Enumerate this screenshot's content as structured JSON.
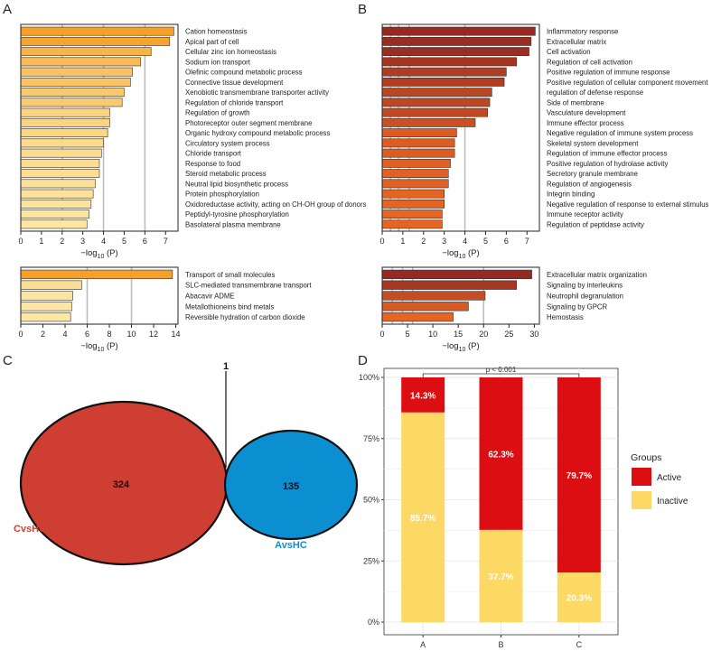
{
  "colors": {
    "grid": "#bdbdbd",
    "red": "#cc1f1f",
    "venn_red": "#cf3e32",
    "venn_blue": "#0b8fd1",
    "active": "#dd0e12",
    "inactive": "#fdd865",
    "bar_stroke": "#333333"
  },
  "panel_labels": {
    "a": "A",
    "b": "B",
    "c": "C",
    "d": "D"
  },
  "chart_data": [
    {
      "id": "A_top",
      "type": "bar",
      "orientation": "horizontal",
      "xlabel_pre": "−log",
      "xlabel_sub": "10",
      "xlabel_post": " (P)",
      "xlim": [
        0,
        7.6
      ],
      "ticks": [
        0,
        1,
        2,
        3,
        4,
        5,
        6,
        7
      ],
      "grid": [
        2,
        4,
        6
      ],
      "palette": "yellow-orange",
      "categories": [
        "Cation homeostasis",
        "Apical part of cell",
        "Cellular zinc ion homeostasis",
        "Sodium ion transport",
        "Olefinic compound metabolic process",
        "Connective tissue development",
        "Xenobiotic transmembrane transporter activity",
        "Regulation of chloride transport",
        "Regulation of growth",
        "Photoreceptor outer segment membrane",
        "Organic hydroxy compound metabolic process",
        "Circulatory system process",
        "Chloride transport",
        "Response to food",
        "Steroid metabolic process",
        "Neutral lipid biosynthetic process",
        "Protein phosphorylation",
        "Oxidoreductase activity, acting on CH-OH group of donors",
        "Peptidyl-tyrosine phosphorylation",
        "Basolateral plasma membrane"
      ],
      "values": [
        7.4,
        7.2,
        6.3,
        5.8,
        5.4,
        5.3,
        5.0,
        4.9,
        4.3,
        4.3,
        4.2,
        4.0,
        3.9,
        3.8,
        3.8,
        3.6,
        3.5,
        3.4,
        3.3,
        3.2
      ]
    },
    {
      "id": "A_bottom",
      "type": "bar",
      "orientation": "horizontal",
      "xlabel_pre": "−log",
      "xlabel_sub": "10",
      "xlabel_post": " (P)",
      "xlim": [
        0,
        14.2
      ],
      "ticks": [
        0,
        2,
        4,
        6,
        8,
        10,
        12,
        14
      ],
      "grid": [
        6,
        10
      ],
      "palette": "yellow-orange",
      "categories": [
        "Transport of small molecules",
        "SLC-mediated transmembrane transport",
        "Abacavir ADME",
        "Metallothioneins bind metals",
        "Reversible hydration of carbon dioxide"
      ],
      "values": [
        13.7,
        5.5,
        4.7,
        4.6,
        4.5
      ]
    },
    {
      "id": "B_top",
      "type": "bar",
      "orientation": "horizontal",
      "xlabel_pre": "−log",
      "xlabel_sub": "10",
      "xlabel_post": " (P)",
      "xlim": [
        0,
        7.6
      ],
      "ticks": [
        0,
        1,
        2,
        3,
        4,
        5,
        6,
        7
      ],
      "grid": [
        0.4,
        0.8,
        1.3,
        4
      ],
      "palette": "red-brown",
      "categories": [
        "Inflammatory response",
        "Extracellular matrix",
        "Cell activation",
        "Regulation of cell activation",
        "Positive regulation of immune response",
        "Positive regulation of cellular component movement",
        "regulation of defense response",
        "Side of membrane",
        "Vasculature development",
        "Immune effector process",
        "Negative regulation of immune system process",
        "Skeletal system development",
        "Regulation of immune effector process",
        "Positive regulation of hydrolase activity",
        "Secretory granule membrane",
        "Regulation of angiogenesis",
        "Integrin binding",
        "Negative regulation of response to external stimulus",
        "Immune receptor activity",
        "Regulation of peptidase activity"
      ],
      "values": [
        7.4,
        7.2,
        7.1,
        6.5,
        6.0,
        5.9,
        5.3,
        5.2,
        5.1,
        4.5,
        3.6,
        3.5,
        3.5,
        3.3,
        3.2,
        3.2,
        3.0,
        3.0,
        2.9,
        2.9
      ]
    },
    {
      "id": "B_bottom",
      "type": "bar",
      "orientation": "horizontal",
      "xlabel_pre": "−log",
      "xlabel_sub": "10",
      "xlabel_post": " (P)",
      "xlim": [
        0,
        31
      ],
      "ticks": [
        0,
        5,
        10,
        15,
        20,
        25,
        30
      ],
      "grid": [
        2,
        4,
        6,
        20
      ],
      "palette": "red-brown",
      "categories": [
        "Extracellular matrix organization",
        "Signaling by interleukins",
        "Neutrophil degranulation",
        "Signaling by GPCR",
        "Hemostasis"
      ],
      "values": [
        29.5,
        26.5,
        20.3,
        17.0,
        14.0
      ]
    },
    {
      "id": "C",
      "type": "venn",
      "sets": [
        {
          "name": "CvsHC",
          "unique": 324
        },
        {
          "name": "AvsHC",
          "unique": 135
        }
      ],
      "overlap": 1
    },
    {
      "id": "D",
      "type": "stacked-bar",
      "categories": [
        "A",
        "B",
        "C"
      ],
      "ylim": [
        0,
        100
      ],
      "ytick_labels": [
        "0%",
        "25%",
        "50%",
        "75%",
        "100%"
      ],
      "series": [
        {
          "name": "Inactive",
          "values": [
            85.7,
            37.7,
            20.3
          ],
          "labels": [
            "85.7%",
            "37.7%",
            "20.3%"
          ]
        },
        {
          "name": "Active",
          "values": [
            14.3,
            62.3,
            79.7
          ],
          "labels": [
            "14.3%",
            "62.3%",
            "79.7%"
          ]
        }
      ],
      "annotation": "p < 0.001",
      "legend_title": "Groups",
      "legend_order": [
        "Active",
        "Inactive"
      ],
      "legend_position": "right"
    }
  ]
}
